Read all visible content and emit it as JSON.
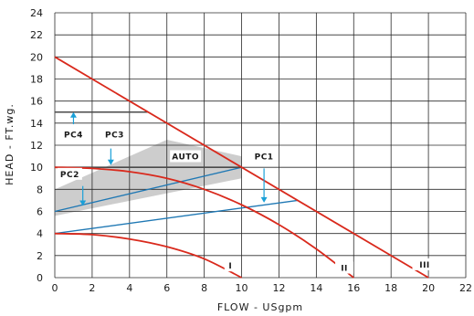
{
  "chart_data": {
    "type": "line",
    "xlabel": "FLOW - USgpm",
    "ylabel": "HEAD - FT.wg.",
    "xlim": [
      0,
      22
    ],
    "ylim": [
      0,
      24
    ],
    "xticks": [
      0,
      2,
      4,
      6,
      8,
      10,
      12,
      14,
      16,
      18,
      20,
      22
    ],
    "yticks": [
      0,
      2,
      4,
      6,
      8,
      10,
      12,
      14,
      16,
      18,
      20,
      22,
      24
    ],
    "grid": true,
    "colors": {
      "pump_curve": "#d9291c",
      "control_curve": "#1f78b4",
      "auto_band": "#c4c4c4",
      "pc_line": "#4a4a4a",
      "arrow": "#1aa0d8",
      "grid": "#2a2a2a"
    },
    "pump_curves": [
      {
        "label": "I",
        "points": [
          [
            0,
            4
          ],
          [
            2,
            3.9
          ],
          [
            4,
            3.5
          ],
          [
            6,
            2.8
          ],
          [
            8,
            1.7
          ],
          [
            10,
            0
          ]
        ]
      },
      {
        "label": "II",
        "points": [
          [
            0,
            10
          ],
          [
            2,
            9.9
          ],
          [
            4,
            9.6
          ],
          [
            6,
            9.0
          ],
          [
            8,
            8.0
          ],
          [
            10,
            6.6
          ],
          [
            12,
            4.8
          ],
          [
            14,
            2.6
          ],
          [
            16,
            0
          ]
        ]
      },
      {
        "label": "III",
        "points": [
          [
            0,
            20
          ],
          [
            20,
            0
          ]
        ]
      }
    ],
    "control_curves": [
      {
        "label": "PC1",
        "points": [
          [
            0,
            4
          ],
          [
            13,
            7
          ]
        ]
      },
      {
        "label": "PC2",
        "points": [
          [
            0,
            6
          ],
          [
            10,
            10
          ]
        ]
      },
      {
        "label": "PC3",
        "points": [
          [
            0,
            10
          ],
          [
            10,
            10
          ]
        ]
      },
      {
        "label": "PC4",
        "points": [
          [
            0,
            15
          ],
          [
            5,
            15
          ]
        ]
      }
    ],
    "auto_band": [
      [
        0,
        5.6
      ],
      [
        10,
        9
      ],
      [
        10,
        11
      ],
      [
        6,
        12.5
      ],
      [
        0,
        8
      ]
    ],
    "annotations": [
      {
        "text": "AUTO",
        "x": 7,
        "y": 10.8
      },
      {
        "text": "PC1",
        "x": 11.2,
        "y": 10.8
      },
      {
        "text": "PC2",
        "x": 0.8,
        "y": 9.2
      },
      {
        "text": "PC3",
        "x": 3.2,
        "y": 12.8
      },
      {
        "text": "PC4",
        "x": 1.0,
        "y": 12.8
      },
      {
        "text": "I",
        "x": 9.4,
        "y": 0.9
      },
      {
        "text": "II",
        "x": 15.5,
        "y": 0.7
      },
      {
        "text": "III",
        "x": 19.8,
        "y": 1.0
      }
    ],
    "arrows": [
      {
        "label": "PC4",
        "from": [
          1.0,
          13.9
        ],
        "to": [
          1.0,
          15.0
        ]
      },
      {
        "label": "PC3",
        "from": [
          3.0,
          11.7
        ],
        "to": [
          3.0,
          10.2
        ]
      },
      {
        "label": "PC2",
        "from": [
          1.5,
          8.3
        ],
        "to": [
          1.5,
          6.5
        ]
      },
      {
        "label": "PC1",
        "from": [
          11.2,
          9.9
        ],
        "to": [
          11.2,
          6.8
        ]
      }
    ]
  }
}
